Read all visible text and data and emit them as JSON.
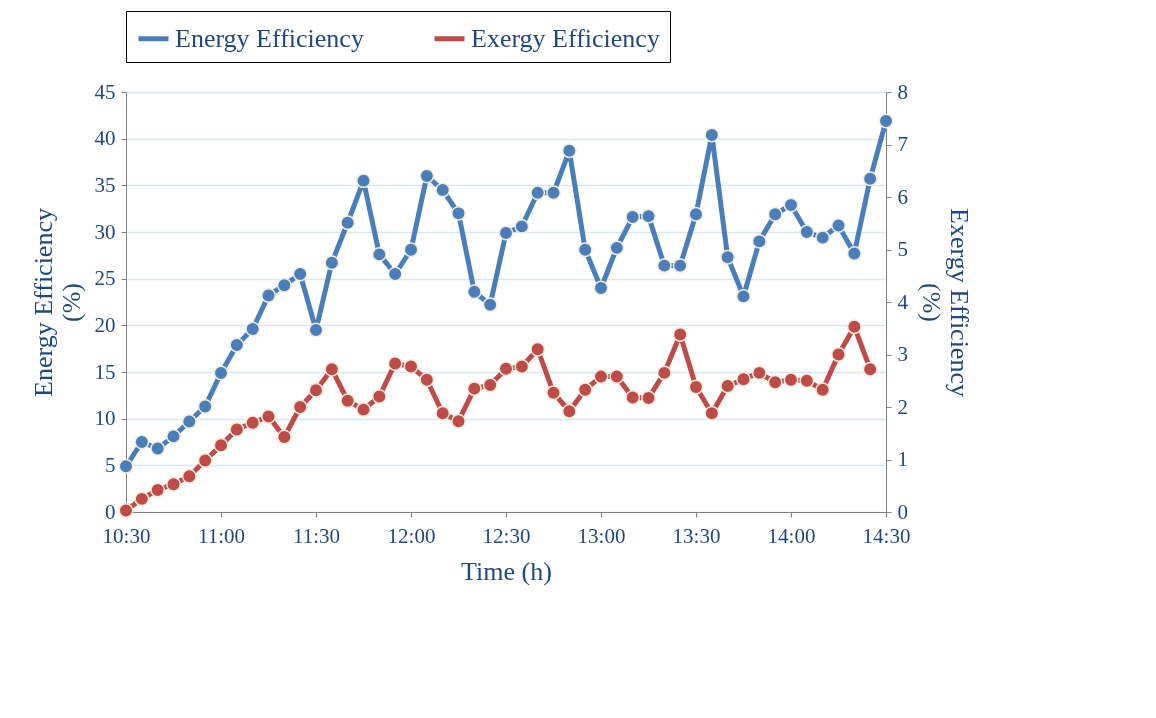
{
  "chart_data": {
    "type": "line",
    "xlabel": "Time (h)",
    "ylabel": "Energy Efficiency (%)",
    "y2label": "Exergy Efficiency (%)",
    "x": [
      10.5,
      10.5833,
      10.6667,
      10.75,
      10.8333,
      10.9167,
      11.0,
      11.0833,
      11.1667,
      11.25,
      11.3333,
      11.4167,
      11.5,
      11.5833,
      11.6667,
      11.75,
      11.8333,
      11.9167,
      12.0,
      12.0833,
      12.1667,
      12.25,
      12.3333,
      12.4167,
      12.5,
      12.5833,
      12.6667,
      12.75,
      12.8333,
      12.9167,
      13.0,
      13.0833,
      13.1667,
      13.25,
      13.3333,
      13.4167,
      13.5,
      13.5833,
      13.6667,
      13.75,
      13.8333,
      13.9167,
      14.0,
      14.0833,
      14.1667,
      14.25,
      14.3333,
      14.4167,
      14.5
    ],
    "series": [
      {
        "name": "Energy Efficiency",
        "color": "#4a7ebb",
        "values": [
          4.9,
          7.5,
          6.8,
          8.1,
          9.7,
          11.3,
          14.9,
          17.9,
          19.6,
          23.2,
          24.3,
          25.5,
          19.5,
          26.7,
          31.0,
          35.5,
          27.6,
          25.5,
          28.1,
          36.0,
          34.5,
          32.0,
          23.6,
          22.2,
          29.9,
          30.6,
          34.2,
          34.2,
          38.7,
          28.1,
          24.0,
          28.3,
          31.6,
          31.7,
          26.4,
          26.4,
          31.9,
          40.4,
          27.3,
          23.1,
          29.0,
          31.9,
          32.9,
          30.0,
          29.4,
          30.7,
          27.7,
          35.7,
          41.9
        ]
      },
      {
        "name": "Exergy Efficiency",
        "color": "#be4b48",
        "axis": "y2",
        "x": [
          10.5,
          10.5833,
          10.6667,
          10.75,
          10.8333,
          10.9167,
          11.0,
          11.0833,
          11.1667,
          11.25,
          11.3333,
          11.4167,
          11.5,
          11.5833,
          11.6667,
          11.75,
          11.8333,
          11.9167,
          12.0,
          12.0833,
          12.1667,
          12.25,
          12.3333,
          12.4167,
          12.5,
          12.5833,
          12.6667,
          12.75,
          12.8333,
          12.9167,
          13.0,
          13.0833,
          13.1667,
          13.25,
          13.3333,
          13.4167,
          13.5,
          13.5833,
          13.6667,
          13.75,
          13.8333,
          13.9167,
          14.0,
          14.0833,
          14.1667,
          14.25,
          14.3333,
          14.4167
        ],
        "values": [
          0.03,
          0.25,
          0.42,
          0.53,
          0.68,
          0.98,
          1.27,
          1.57,
          1.7,
          1.82,
          1.43,
          2.0,
          2.32,
          2.72,
          2.12,
          1.95,
          2.2,
          2.83,
          2.77,
          2.52,
          1.88,
          1.73,
          2.35,
          2.42,
          2.73,
          2.77,
          3.1,
          2.27,
          1.92,
          2.33,
          2.58,
          2.58,
          2.18,
          2.17,
          2.65,
          3.38,
          2.38,
          1.88,
          2.4,
          2.53,
          2.65,
          2.47,
          2.52,
          2.5,
          2.33,
          3.0,
          3.53,
          2.72
        ]
      }
    ],
    "xlim": [
      10.5,
      14.5
    ],
    "xticks": [
      {
        "value": 10.5,
        "label": "10:30"
      },
      {
        "value": 11.0,
        "label": "11:00"
      },
      {
        "value": 11.5,
        "label": "11:30"
      },
      {
        "value": 12.0,
        "label": "12:00"
      },
      {
        "value": 12.5,
        "label": "12:30"
      },
      {
        "value": 13.0,
        "label": "13:00"
      },
      {
        "value": 13.5,
        "label": "13:30"
      },
      {
        "value": 14.0,
        "label": "14:00"
      },
      {
        "value": 14.5,
        "label": "14:30"
      }
    ],
    "ylim": [
      0,
      45
    ],
    "yticks": [
      0,
      5,
      10,
      15,
      20,
      25,
      30,
      35,
      40,
      45
    ],
    "y2lim": [
      0,
      8
    ],
    "y2ticks": [
      0,
      1,
      2,
      3,
      4,
      5,
      6,
      7,
      8
    ],
    "grid": "y",
    "legend": "top",
    "marker": "circle",
    "line_style": "solid"
  }
}
